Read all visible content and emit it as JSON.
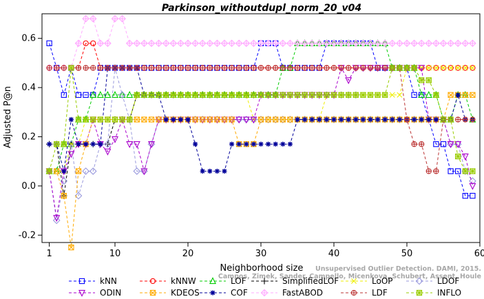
{
  "chart_data": {
    "type": "line",
    "title": "Parkinson_withoutdupl_norm_20_v04",
    "xlabel": "Neighborhood size",
    "ylabel": "Adjusted P@n",
    "xlim": [
      0,
      60
    ],
    "ylim": [
      -0.23,
      0.7
    ],
    "xticks": [
      1,
      10,
      20,
      30,
      40,
      50,
      60
    ],
    "yticks": [
      -0.2,
      0.0,
      0.2,
      0.4,
      0.6
    ],
    "grid": false,
    "legend_position": "bottom",
    "series": [
      {
        "name": "kNN",
        "color": "#0000ff",
        "marker": "square",
        "values": [
          0.58,
          0.48,
          0.37,
          0.48,
          0.37,
          0.37,
          0.37,
          0.48,
          0.48,
          0.48,
          0.48,
          0.48,
          0.48,
          0.48,
          0.48,
          0.48,
          0.48,
          0.48,
          0.48,
          0.48,
          0.48,
          0.48,
          0.48,
          0.48,
          0.48,
          0.48,
          0.48,
          0.48,
          0.48,
          0.58,
          0.58,
          0.58,
          0.48,
          0.48,
          0.48,
          0.48,
          0.48,
          0.48,
          0.58,
          0.58,
          0.58,
          0.58,
          0.58,
          0.58,
          0.58,
          0.48,
          0.48,
          0.48,
          0.48,
          0.48,
          0.37,
          0.37,
          0.27,
          0.17,
          0.17,
          0.06,
          0.06,
          -0.04,
          -0.04
        ]
      },
      {
        "name": "kNNW",
        "color": "#ff0000",
        "marker": "circle",
        "values": [
          0.48,
          0.48,
          0.48,
          0.48,
          0.48,
          0.58,
          0.58,
          0.48,
          0.48,
          0.48,
          0.48,
          0.48,
          0.48,
          0.48,
          0.48,
          0.48,
          0.48,
          0.48,
          0.48,
          0.48,
          0.48,
          0.48,
          0.48,
          0.48,
          0.48,
          0.48,
          0.48,
          0.48,
          0.48,
          0.48,
          0.48,
          0.48,
          0.48,
          0.48,
          0.48,
          0.48,
          0.48,
          0.48,
          0.48,
          0.48,
          0.48,
          0.48,
          0.48,
          0.48,
          0.48,
          0.48,
          0.48,
          0.48,
          0.48,
          0.48,
          0.48,
          0.48,
          0.48,
          0.48,
          0.48,
          0.48,
          0.48,
          0.48,
          0.48
        ]
      },
      {
        "name": "LOF",
        "color": "#00cc00",
        "marker": "triangle",
        "values": [
          0.06,
          0.06,
          0.17,
          0.17,
          0.27,
          0.27,
          0.37,
          0.37,
          0.37,
          0.37,
          0.37,
          0.37,
          0.37,
          0.37,
          0.37,
          0.37,
          0.37,
          0.37,
          0.37,
          0.37,
          0.37,
          0.37,
          0.37,
          0.37,
          0.37,
          0.37,
          0.37,
          0.37,
          0.37,
          0.37,
          0.37,
          0.37,
          0.48,
          0.48,
          0.58,
          0.58,
          0.58,
          0.58,
          0.58,
          0.58,
          0.58,
          0.58,
          0.58,
          0.58,
          0.58,
          0.58,
          0.58,
          0.48,
          0.48,
          0.48,
          0.48,
          0.37,
          0.37,
          0.37,
          0.27,
          0.27,
          0.37,
          0.37,
          0.27
        ]
      },
      {
        "name": "SimplifiedLOF",
        "color": "#000000",
        "marker": "plus",
        "values": [
          0.17,
          0.17,
          -0.04,
          0.17,
          0.17,
          0.17,
          0.17,
          0.17,
          0.17,
          0.27,
          0.27,
          0.27,
          0.37,
          0.37,
          0.37,
          0.37,
          0.37,
          0.37,
          0.37,
          0.37,
          0.37,
          0.37,
          0.37,
          0.37,
          0.37,
          0.37,
          0.37,
          0.37,
          0.37,
          0.37,
          0.37,
          0.37,
          0.37,
          0.37,
          0.37,
          0.37,
          0.37,
          0.37,
          0.37,
          0.37,
          0.37,
          0.37,
          0.37,
          null,
          null,
          null,
          null,
          null,
          null,
          null,
          null,
          null,
          null,
          null,
          null,
          null,
          null,
          null,
          null
        ]
      },
      {
        "name": "LoOP",
        "color": "#eeee00",
        "marker": "x",
        "values": [
          0.06,
          0.06,
          0.06,
          0.17,
          0.17,
          0.27,
          0.27,
          0.27,
          0.27,
          0.27,
          0.27,
          0.27,
          0.37,
          0.37,
          0.37,
          0.37,
          0.37,
          0.37,
          0.37,
          0.37,
          0.37,
          0.37,
          0.37,
          0.37,
          0.37,
          0.37,
          0.37,
          0.37,
          0.27,
          0.27,
          0.27,
          0.27,
          0.27,
          0.27,
          0.27,
          0.27,
          0.27,
          0.27,
          0.37,
          0.37,
          0.37,
          0.37,
          0.37,
          0.37,
          0.37,
          0.37,
          0.37,
          0.37,
          0.37,
          0.48,
          0.48,
          0.48,
          0.48,
          0.48,
          0.48,
          0.48,
          0.48,
          0.48,
          0.48
        ]
      },
      {
        "name": "LDOF",
        "color": "#9999dd",
        "marker": "diamond",
        "values": [
          0.06,
          -0.14,
          0.02,
          0.17,
          -0.04,
          0.06,
          0.06,
          0.17,
          0.17,
          0.48,
          0.37,
          0.27,
          0.06,
          0.06,
          0.17,
          0.27,
          0.27,
          0.27,
          0.27,
          0.27,
          0.27,
          0.27,
          0.27,
          0.27,
          0.27,
          0.27,
          0.27,
          0.27,
          0.27,
          0.27,
          0.27,
          0.27,
          0.27,
          0.27,
          0.27,
          0.27,
          0.27,
          0.27,
          0.27,
          0.27,
          0.27,
          0.27,
          0.27,
          0.27,
          0.27,
          0.27,
          0.27,
          0.27,
          0.27,
          0.27,
          0.27,
          0.27,
          0.27,
          0.27,
          0.27,
          0.17,
          0.17,
          0.06,
          0.02
        ]
      },
      {
        "name": "ODIN",
        "color": "#aa00cc",
        "marker": "inv-triangle",
        "values": [
          0.06,
          -0.13,
          0.06,
          0.13,
          0.17,
          0.17,
          0.27,
          0.17,
          0.14,
          0.19,
          0.27,
          0.17,
          0.17,
          0.06,
          0.17,
          0.27,
          0.27,
          0.27,
          0.27,
          0.27,
          0.27,
          0.27,
          0.27,
          0.27,
          0.27,
          0.27,
          0.27,
          0.27,
          0.27,
          0.37,
          0.37,
          0.37,
          0.37,
          0.37,
          0.37,
          0.37,
          0.37,
          0.37,
          0.37,
          0.37,
          0.48,
          0.43,
          0.48,
          0.48,
          0.48,
          0.48,
          0.48,
          0.48,
          0.48,
          0.48,
          0.48,
          0.48,
          0.27,
          0.27,
          0.27,
          0.17,
          0.17,
          0.12,
          0.0
        ]
      },
      {
        "name": "KDEOS",
        "color": "#ffaa00",
        "marker": "square-x",
        "values": [
          0.06,
          0.06,
          -0.04,
          -0.25,
          0.06,
          0.17,
          0.27,
          0.27,
          0.27,
          0.27,
          0.27,
          0.27,
          0.27,
          0.27,
          0.27,
          0.27,
          0.27,
          0.27,
          0.27,
          0.27,
          0.27,
          0.27,
          0.27,
          0.27,
          0.27,
          0.27,
          0.17,
          0.17,
          0.17,
          0.27,
          0.27,
          0.27,
          0.27,
          0.27,
          0.27,
          0.27,
          0.27,
          0.27,
          0.27,
          0.27,
          0.27,
          0.27,
          0.27,
          0.27,
          0.27,
          0.27,
          0.27,
          0.27,
          0.27,
          0.27,
          0.27,
          0.27,
          0.27,
          0.27,
          0.27,
          0.37,
          0.37,
          0.37,
          0.37
        ]
      },
      {
        "name": "COF",
        "color": "#000099",
        "marker": "asterisk",
        "values": [
          0.17,
          0.17,
          0.06,
          0.27,
          0.17,
          0.17,
          0.17,
          0.17,
          0.48,
          0.48,
          0.48,
          0.48,
          0.48,
          0.37,
          0.37,
          0.37,
          0.27,
          0.27,
          0.27,
          0.27,
          0.17,
          0.06,
          0.06,
          0.06,
          0.06,
          0.17,
          0.17,
          0.17,
          0.17,
          0.17,
          0.17,
          0.17,
          0.17,
          0.17,
          0.27,
          0.27,
          0.27,
          0.27,
          0.27,
          0.27,
          0.27,
          0.27,
          0.27,
          0.27,
          0.27,
          0.27,
          0.27,
          0.27,
          0.27,
          0.27,
          0.27,
          0.27,
          0.27,
          0.27,
          0.27,
          0.27,
          0.37,
          0.27,
          0.27
        ]
      },
      {
        "name": "FastABOD",
        "color": "#ffaaff",
        "marker": "diamond-plus",
        "values": [
          0.48,
          0.48,
          0.48,
          0.48,
          0.58,
          0.68,
          0.68,
          0.58,
          0.58,
          0.68,
          0.68,
          0.58,
          0.58,
          0.58,
          0.58,
          0.58,
          0.58,
          0.58,
          0.58,
          0.58,
          0.58,
          0.58,
          0.58,
          0.58,
          0.58,
          0.58,
          0.58,
          0.58,
          0.58,
          0.58,
          0.58,
          0.58,
          0.58,
          0.58,
          0.58,
          0.58,
          0.58,
          0.58,
          0.58,
          0.58,
          0.58,
          0.58,
          0.58,
          0.58,
          0.58,
          0.58,
          0.58,
          0.58,
          0.58,
          0.58,
          0.58,
          0.58,
          0.58,
          0.58,
          0.58,
          0.58,
          0.58,
          0.58,
          0.58
        ]
      },
      {
        "name": "LDF",
        "color": "#bb3333",
        "marker": "circle-plus",
        "values": [
          0.48,
          0.48,
          0.48,
          0.48,
          0.48,
          0.48,
          0.48,
          0.48,
          0.48,
          0.48,
          0.48,
          0.48,
          0.48,
          0.48,
          0.48,
          0.48,
          0.48,
          0.48,
          0.48,
          0.48,
          0.48,
          0.48,
          0.48,
          0.48,
          0.48,
          0.48,
          0.48,
          0.48,
          0.48,
          0.48,
          0.48,
          0.48,
          0.48,
          0.48,
          0.48,
          0.48,
          0.48,
          0.48,
          0.48,
          0.48,
          0.48,
          0.48,
          0.48,
          0.48,
          0.48,
          0.48,
          0.48,
          0.48,
          0.48,
          0.27,
          0.17,
          0.17,
          0.06,
          0.06,
          0.27,
          0.27,
          0.27,
          0.27,
          0.27
        ]
      },
      {
        "name": "INFLO",
        "color": "#99cc00",
        "marker": "star-square",
        "values": [
          0.06,
          0.17,
          0.17,
          0.48,
          0.27,
          0.27,
          0.27,
          0.27,
          0.27,
          0.27,
          0.27,
          0.27,
          0.37,
          0.37,
          0.37,
          0.37,
          0.37,
          0.37,
          0.37,
          0.37,
          0.37,
          0.37,
          0.37,
          0.37,
          0.37,
          0.37,
          0.37,
          0.37,
          0.37,
          0.37,
          0.37,
          0.37,
          0.37,
          0.37,
          0.37,
          0.37,
          0.37,
          0.37,
          0.37,
          0.37,
          0.37,
          0.37,
          0.37,
          0.37,
          0.37,
          0.37,
          0.37,
          0.48,
          0.48,
          0.48,
          0.48,
          0.43,
          0.43,
          0.37,
          0.27,
          0.27,
          0.12,
          0.06,
          0.06
        ]
      }
    ]
  },
  "watermark": {
    "line1": "Unsupervised Outlier Detection. DAMI, 2015.",
    "line2": "Campos, Zimek, Sander, Campello, Micenkova, Schubert, Assent, Houle"
  }
}
